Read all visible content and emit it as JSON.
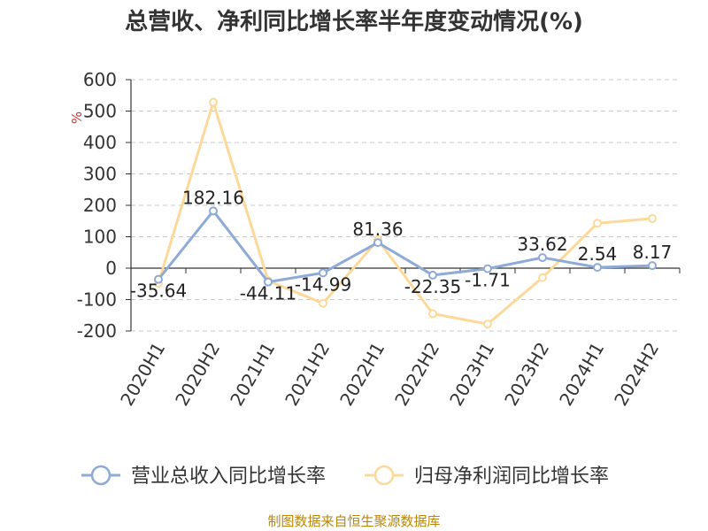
{
  "chart_data": {
    "type": "line",
    "title": "总营收、净利同比增长率半年度变动情况(%)",
    "ylabel": "%",
    "xlabel": "",
    "categories": [
      "2020H1",
      "2020H2",
      "2021H1",
      "2021H2",
      "2022H1",
      "2022H2",
      "2023H1",
      "2023H2",
      "2024H1",
      "2024H2"
    ],
    "ylim": [
      -200,
      600
    ],
    "yticks": [
      600,
      500,
      400,
      300,
      200,
      100,
      0,
      -100,
      -200
    ],
    "grid": true,
    "legend_position": "bottom",
    "series": [
      {
        "name": "营业总收入同比增长率",
        "color": "#8eaad6",
        "values": [
          -35.64,
          182.16,
          -44.11,
          -14.99,
          81.36,
          -22.35,
          -1.71,
          33.62,
          2.54,
          8.17
        ],
        "labels": [
          "-35.64",
          "182.16",
          "-44.11",
          "-14.99",
          "81.36",
          "-22.35",
          "-1.71",
          "33.62",
          "2.54",
          "8.17"
        ]
      },
      {
        "name": "归母净利润同比增长率",
        "color": "#fcd99a",
        "values": [
          -48,
          528,
          -40,
          -112,
          90,
          -145,
          -178,
          -30,
          143,
          158
        ]
      }
    ]
  },
  "source_note": "制图数据来自恒生聚源数据库"
}
